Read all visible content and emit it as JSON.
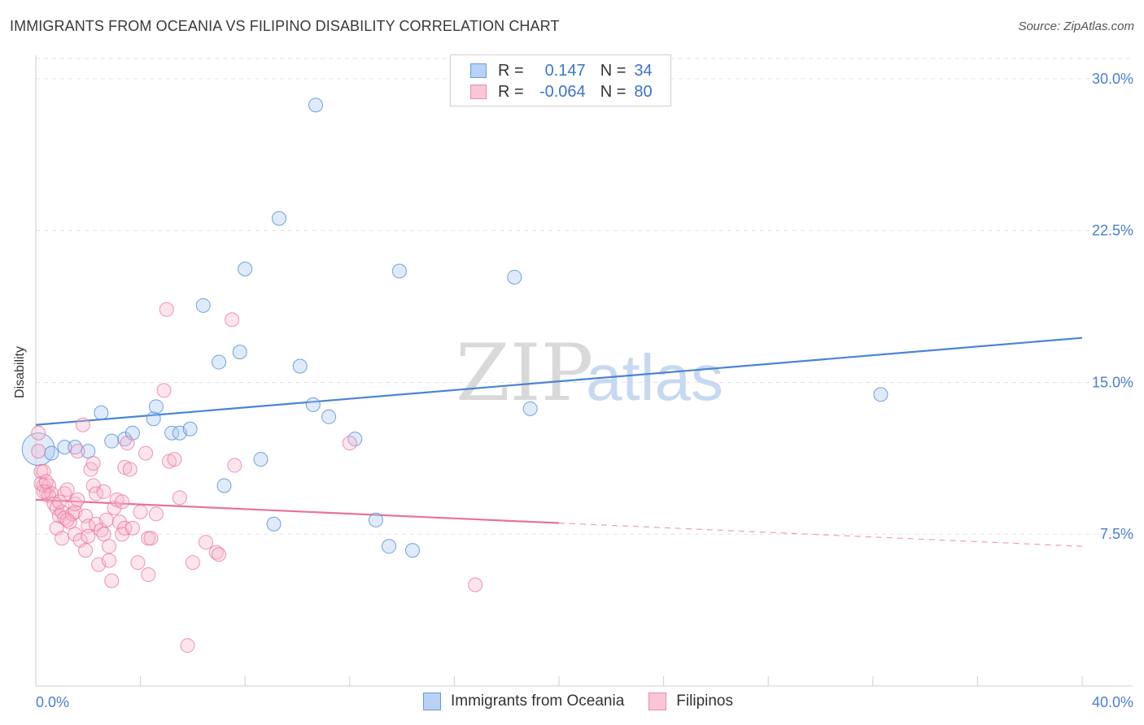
{
  "title": "IMMIGRANTS FROM OCEANIA VS FILIPINO DISABILITY CORRELATION CHART",
  "source": "Source: ZipAtlas.com",
  "watermark": {
    "zip": "ZIP",
    "atlas": "atlas"
  },
  "legend": {
    "row1": {
      "r_label": "R =",
      "r_value": "0.147",
      "n_label": "N =",
      "n_value": "34"
    },
    "row2": {
      "r_label": "R =",
      "r_value": "-0.064",
      "n_label": "N =",
      "n_value": "80"
    }
  },
  "colors": {
    "blue": "#4a84d4",
    "blue_fill": "rgba(164,198,240,0.35)",
    "pink": "#e8739a",
    "pink_fill": "rgba(245,180,202,0.35)",
    "axis_text": "#4a7fd0"
  },
  "chart_data": {
    "type": "scatter",
    "title": "IMMIGRANTS FROM OCEANIA VS FILIPINO DISABILITY CORRELATION CHART",
    "xlabel": "",
    "ylabel": "Disability",
    "xlim": [
      0,
      40
    ],
    "ylim": [
      0,
      31
    ],
    "x_tick_labels": [
      "0.0%",
      "40.0%"
    ],
    "y_ticks": [
      7.5,
      15.0,
      22.5,
      30.0
    ],
    "y_tick_labels": [
      "7.5%",
      "15.0%",
      "22.5%",
      "30.0%"
    ],
    "series": [
      {
        "name": "Immigrants from Oceania",
        "color": "#4a84d4",
        "trend": {
          "x0": 0,
          "y0": 12.9,
          "x1": 40,
          "y1": 17.2,
          "dashed_from": null
        },
        "points": [
          [
            0.1,
            11.7,
            "big"
          ],
          [
            0.6,
            11.5
          ],
          [
            1.1,
            11.8
          ],
          [
            1.5,
            11.8
          ],
          [
            2.0,
            11.6
          ],
          [
            2.5,
            13.5
          ],
          [
            2.9,
            12.1
          ],
          [
            3.4,
            12.2
          ],
          [
            3.7,
            12.5
          ],
          [
            4.5,
            13.2
          ],
          [
            4.6,
            13.8
          ],
          [
            5.2,
            12.5
          ],
          [
            5.5,
            12.5
          ],
          [
            5.9,
            12.7
          ],
          [
            6.4,
            18.8
          ],
          [
            7.0,
            16.0
          ],
          [
            7.2,
            9.9
          ],
          [
            7.8,
            16.5
          ],
          [
            8.0,
            20.6
          ],
          [
            8.6,
            11.2
          ],
          [
            9.1,
            8.0
          ],
          [
            9.3,
            23.1
          ],
          [
            10.1,
            15.8
          ],
          [
            10.6,
            13.9
          ],
          [
            10.7,
            28.7
          ],
          [
            11.2,
            13.3
          ],
          [
            12.2,
            12.2
          ],
          [
            13.0,
            8.2
          ],
          [
            13.5,
            6.9
          ],
          [
            13.9,
            20.5
          ],
          [
            14.4,
            6.7
          ],
          [
            18.3,
            20.2
          ],
          [
            18.9,
            13.7
          ],
          [
            32.3,
            14.4
          ]
        ]
      },
      {
        "name": "Filipinos",
        "color": "#e8739a",
        "trend": {
          "x0": 0,
          "y0": 9.2,
          "x1": 40,
          "y1": 6.9,
          "dashed_from": 20
        },
        "points": [
          [
            0.1,
            12.5
          ],
          [
            0.1,
            11.6
          ],
          [
            0.2,
            10.6
          ],
          [
            0.2,
            10.0
          ],
          [
            0.3,
            10.6
          ],
          [
            0.3,
            9.9
          ],
          [
            0.4,
            9.6
          ],
          [
            0.5,
            9.4
          ],
          [
            0.5,
            9.9
          ],
          [
            0.6,
            9.5
          ],
          [
            0.7,
            9.0
          ],
          [
            0.8,
            8.8
          ],
          [
            0.8,
            7.8
          ],
          [
            0.9,
            8.4
          ],
          [
            1.0,
            8.6
          ],
          [
            1.1,
            9.5
          ],
          [
            1.1,
            8.3
          ],
          [
            1.2,
            9.7
          ],
          [
            1.3,
            8.1
          ],
          [
            1.4,
            8.5
          ],
          [
            1.5,
            8.6
          ],
          [
            1.5,
            7.5
          ],
          [
            1.5,
            9.0
          ],
          [
            1.6,
            11.6
          ],
          [
            1.6,
            9.2
          ],
          [
            1.7,
            7.2
          ],
          [
            1.8,
            12.9
          ],
          [
            1.9,
            8.4
          ],
          [
            1.9,
            6.7
          ],
          [
            2.0,
            7.9
          ],
          [
            2.1,
            10.7
          ],
          [
            2.2,
            9.9
          ],
          [
            2.2,
            11.0
          ],
          [
            2.3,
            9.5
          ],
          [
            2.3,
            8.0
          ],
          [
            2.4,
            6.0
          ],
          [
            2.5,
            7.7
          ],
          [
            2.6,
            9.6
          ],
          [
            2.6,
            7.5
          ],
          [
            2.7,
            8.2
          ],
          [
            2.8,
            6.9
          ],
          [
            2.8,
            6.2
          ],
          [
            2.9,
            5.2
          ],
          [
            3.0,
            8.8
          ],
          [
            3.1,
            9.2
          ],
          [
            3.2,
            8.1
          ],
          [
            3.3,
            7.5
          ],
          [
            3.4,
            7.8
          ],
          [
            3.4,
            10.8
          ],
          [
            3.5,
            12.0
          ],
          [
            3.6,
            10.7
          ],
          [
            3.7,
            7.8
          ],
          [
            3.9,
            6.1
          ],
          [
            4.0,
            8.6
          ],
          [
            4.2,
            11.5
          ],
          [
            4.3,
            5.5
          ],
          [
            4.3,
            7.3
          ],
          [
            4.4,
            7.3
          ],
          [
            4.6,
            8.5
          ],
          [
            4.9,
            14.6
          ],
          [
            5.0,
            18.6
          ],
          [
            5.1,
            11.1
          ],
          [
            5.3,
            11.2
          ],
          [
            5.5,
            9.3
          ],
          [
            5.8,
            2.0
          ],
          [
            6.0,
            6.1
          ],
          [
            6.5,
            7.1
          ],
          [
            6.9,
            6.6
          ],
          [
            7.0,
            6.5
          ],
          [
            7.5,
            18.1
          ],
          [
            7.6,
            10.9
          ],
          [
            12.0,
            12.0
          ],
          [
            16.8,
            5.0
          ],
          [
            0.3,
            9.6
          ],
          [
            0.9,
            9.1
          ],
          [
            1.2,
            8.2
          ],
          [
            2.0,
            7.4
          ],
          [
            3.3,
            9.1
          ],
          [
            0.4,
            10.1
          ],
          [
            1.0,
            7.3
          ]
        ]
      }
    ]
  }
}
